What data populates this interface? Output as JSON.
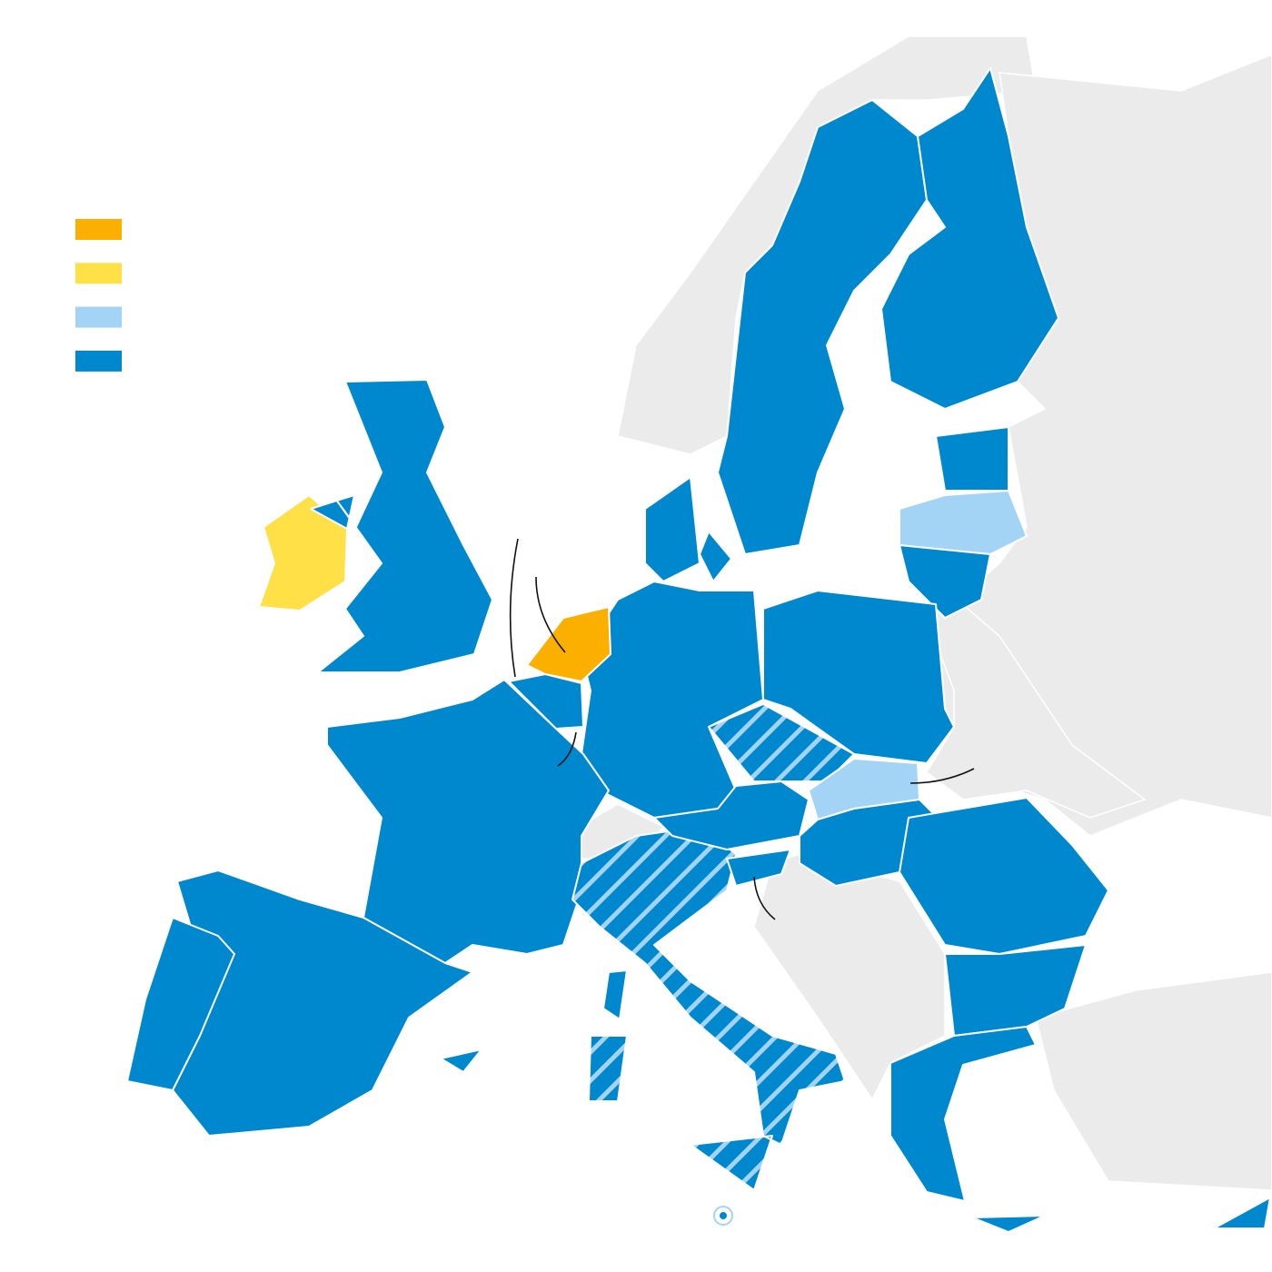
{
  "colors": {
    "cat1": "#FBB000",
    "cat2": "#FFE047",
    "cat3": "#A3D3F5",
    "cat4": "#0088CE",
    "non_member": "#EBEBEB",
    "hatch": "#A3D3F5"
  },
  "legend": [
    {
      "color": "#FBB000"
    },
    {
      "color": "#FFE047"
    },
    {
      "color": "#A3D3F5"
    },
    {
      "color": "#0088CE"
    }
  ],
  "countries": {
    "netherlands": "cat1",
    "ireland": "cat2",
    "latvia": "cat3",
    "slovakia": "cat3",
    "italy": "hatched",
    "czechia": "hatched",
    "sweden": "cat4",
    "finland": "cat4",
    "estonia": "cat4",
    "lithuania": "cat4",
    "poland": "cat4",
    "germany": "cat4",
    "denmark": "cat4",
    "belgium": "cat4",
    "france": "cat4",
    "spain": "cat4",
    "portugal": "cat4",
    "austria": "cat4",
    "hungary": "cat4",
    "slovenia": "cat4",
    "romania": "cat4",
    "bulgaria": "cat4",
    "greece": "cat4",
    "cyprus": "cat4",
    "united-kingdom": "cat4",
    "malta": "cat4"
  }
}
